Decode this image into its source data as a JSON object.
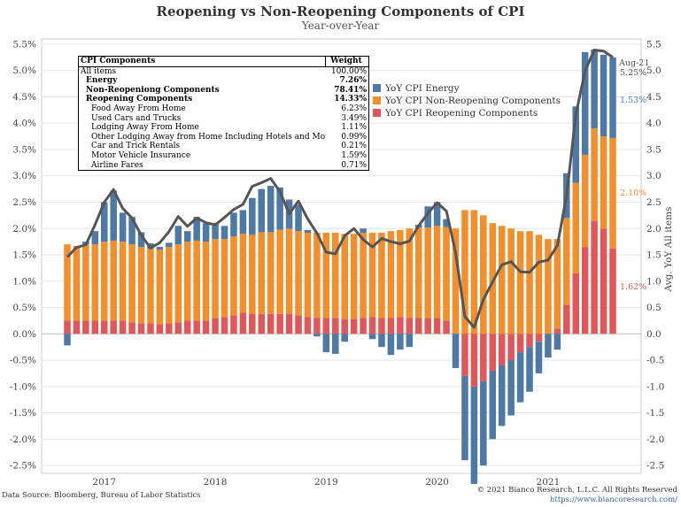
{
  "title": "Reopening vs Non-Reopening Components of CPI",
  "subtitle": "Year-over-Year",
  "footer": {
    "source": "Data Source: Bloomberg, Bureau of Labor Statistics",
    "copyright": "© 2021 Bianco Research, L.L.C. All Rights Reserved",
    "url": "https://www.biancoresearch.com/"
  },
  "colors": {
    "energy": "#4e79a7",
    "non_reopening": "#f28e2b",
    "reopening": "#e15759",
    "line": "#555555"
  },
  "components_table": {
    "header": {
      "name": "CPI Components",
      "weight": "Weight"
    },
    "rows": [
      {
        "name": "All items",
        "weight": "100.00%",
        "bold": false,
        "indent": 0
      },
      {
        "name": "Energy",
        "weight": "7.26%",
        "bold": true,
        "indent": 1
      },
      {
        "name": "Non-Reopeniong Components",
        "weight": "78.41%",
        "bold": true,
        "indent": 1
      },
      {
        "name": "Reopening Components",
        "weight": "14.33%",
        "bold": true,
        "indent": 1
      },
      {
        "name": "Food Away From Home",
        "weight": "6.23%",
        "bold": false,
        "indent": 2
      },
      {
        "name": "Used Cars and Trucks",
        "weight": "3.49%",
        "bold": false,
        "indent": 2
      },
      {
        "name": "Lodging Away From Home",
        "weight": "1.11%",
        "bold": false,
        "indent": 2
      },
      {
        "name": "Other Lodging Away from Home Including Hotels and Motels",
        "weight": "0.99%",
        "bold": false,
        "indent": 2
      },
      {
        "name": "Car and Trick Rentals",
        "weight": "0.21%",
        "bold": false,
        "indent": 2
      },
      {
        "name": "Motor Vehicle Insurance",
        "weight": "1.59%",
        "bold": false,
        "indent": 2
      },
      {
        "name": "Airline Fares",
        "weight": "0.71%",
        "bold": false,
        "indent": 2
      }
    ]
  },
  "chart_data": {
    "type": "bar",
    "stacked": true,
    "title": "Reopening vs Non-Reopening Components of CPI",
    "subtitle": "Year-over-Year",
    "ylabel_right": "Avg. YoY All items",
    "ylim": [
      -2.5,
      5.5
    ],
    "yticks": [
      "-2.5%",
      "-2.0%",
      "-1.5%",
      "-1.0%",
      "-0.5%",
      "0.0%",
      "0.5%",
      "1.0%",
      "1.5%",
      "2.0%",
      "2.5%",
      "3.0%",
      "3.5%",
      "4.0%",
      "4.5%",
      "5.0%",
      "5.5%"
    ],
    "yticks_right": [
      "-2.5",
      "-2.0",
      "-1.5",
      "-1.0",
      "-0.5",
      "0.0",
      "0.5",
      "1.0",
      "1.5",
      "2.0",
      "2.5",
      "3.0",
      "3.5",
      "4.0",
      "4.5",
      "5.0",
      "5.5"
    ],
    "xticks": [
      {
        "label": "2017",
        "index": 4
      },
      {
        "label": "2018",
        "index": 16
      },
      {
        "label": "2019",
        "index": 28
      },
      {
        "label": "2020",
        "index": 40
      },
      {
        "label": "2021",
        "index": 52
      }
    ],
    "months": [
      "Sep-16",
      "Oct-16",
      "Nov-16",
      "Dec-16",
      "Jan-17",
      "Feb-17",
      "Mar-17",
      "Apr-17",
      "May-17",
      "Jun-17",
      "Jul-17",
      "Aug-17",
      "Sep-17",
      "Oct-17",
      "Nov-17",
      "Dec-17",
      "Jan-18",
      "Feb-18",
      "Mar-18",
      "Apr-18",
      "May-18",
      "Jun-18",
      "Jul-18",
      "Aug-18",
      "Sep-18",
      "Oct-18",
      "Nov-18",
      "Dec-18",
      "Jan-19",
      "Feb-19",
      "Mar-19",
      "Apr-19",
      "May-19",
      "Jun-19",
      "Jul-19",
      "Aug-19",
      "Sep-19",
      "Oct-19",
      "Nov-19",
      "Dec-19",
      "Jan-20",
      "Feb-20",
      "Mar-20",
      "Apr-20",
      "May-20",
      "Jun-20",
      "Jul-20",
      "Aug-20",
      "Sep-20",
      "Oct-20",
      "Nov-20",
      "Dec-20",
      "Jan-21",
      "Feb-21",
      "Mar-21",
      "Apr-21",
      "May-21",
      "Jun-21",
      "Jul-21",
      "Aug-21"
    ],
    "series": [
      {
        "name": "YoY CPI Reopening Components",
        "color": "#e15759",
        "values": [
          0.25,
          0.25,
          0.25,
          0.25,
          0.25,
          0.25,
          0.25,
          0.22,
          0.2,
          0.2,
          0.18,
          0.2,
          0.22,
          0.25,
          0.25,
          0.25,
          0.3,
          0.32,
          0.35,
          0.4,
          0.38,
          0.38,
          0.38,
          0.38,
          0.38,
          0.35,
          0.32,
          0.3,
          0.3,
          0.3,
          0.28,
          0.28,
          0.3,
          0.32,
          0.3,
          0.3,
          0.32,
          0.3,
          0.3,
          0.3,
          0.3,
          0.25,
          0.0,
          -0.8,
          -1.0,
          -0.9,
          -0.7,
          -0.6,
          -0.5,
          -0.35,
          -0.25,
          -0.15,
          0.0,
          0.1,
          0.55,
          1.15,
          1.65,
          2.15,
          2.0,
          1.62
        ]
      },
      {
        "name": "YoY CPI Non-Reopening Components",
        "color": "#f28e2b",
        "values": [
          1.45,
          1.42,
          1.45,
          1.45,
          1.5,
          1.52,
          1.5,
          1.48,
          1.45,
          1.42,
          1.42,
          1.45,
          1.48,
          1.5,
          1.52,
          1.5,
          1.5,
          1.48,
          1.5,
          1.5,
          1.5,
          1.55,
          1.55,
          1.6,
          1.62,
          1.6,
          1.6,
          1.62,
          1.62,
          1.62,
          1.62,
          1.62,
          1.62,
          1.6,
          1.62,
          1.65,
          1.65,
          1.7,
          1.72,
          1.72,
          1.75,
          1.78,
          2.0,
          2.35,
          2.35,
          2.25,
          2.1,
          2.05,
          2.0,
          1.95,
          1.95,
          1.88,
          1.8,
          1.7,
          1.65,
          1.72,
          1.75,
          1.75,
          1.75,
          2.1
        ]
      },
      {
        "name": "YoY CPI Energy",
        "color": "#4e79a7",
        "values": [
          -0.22,
          0.0,
          0.05,
          0.25,
          0.75,
          0.95,
          0.55,
          0.52,
          0.28,
          0.1,
          0.05,
          0.08,
          0.35,
          0.2,
          0.45,
          0.35,
          0.3,
          0.25,
          0.45,
          0.45,
          0.7,
          0.82,
          0.88,
          0.8,
          0.55,
          0.5,
          0.05,
          -0.05,
          -0.35,
          -0.38,
          -0.15,
          0.0,
          0.08,
          -0.1,
          -0.25,
          -0.4,
          -0.3,
          -0.25,
          0.05,
          0.4,
          0.45,
          0.15,
          -0.65,
          -1.6,
          -1.85,
          -1.6,
          -1.3,
          -1.15,
          -1.05,
          -0.95,
          -0.85,
          -0.6,
          -0.45,
          -0.3,
          0.85,
          1.45,
          1.95,
          1.5,
          1.55,
          1.53
        ]
      }
    ],
    "line": {
      "name": "Avg. YoY All items",
      "color": "#555555",
      "values": [
        1.46,
        1.64,
        1.69,
        2.07,
        2.5,
        2.74,
        2.38,
        2.2,
        1.87,
        1.63,
        1.73,
        1.94,
        2.23,
        2.04,
        2.2,
        2.11,
        2.07,
        2.21,
        2.36,
        2.46,
        2.8,
        2.87,
        2.95,
        2.7,
        2.28,
        2.52,
        2.18,
        1.91,
        1.55,
        1.52,
        1.86,
        2.0,
        1.79,
        1.65,
        1.81,
        1.75,
        1.71,
        1.76,
        2.05,
        2.29,
        2.49,
        2.33,
        1.54,
        0.33,
        0.12,
        0.65,
        0.99,
        1.31,
        1.37,
        1.18,
        1.17,
        1.36,
        1.4,
        1.68,
        2.62,
        4.16,
        4.99,
        5.39,
        5.37,
        5.25
      ]
    },
    "annotations": [
      {
        "text": "Aug-21",
        "color": "#555555"
      },
      {
        "text": "5.25%",
        "color": "#555555"
      },
      {
        "text": "1.53%",
        "color": "#4e79a7"
      },
      {
        "text": "2.10%",
        "color": "#f28e2b"
      },
      {
        "text": "1.62%",
        "color": "#e15759"
      }
    ],
    "grid": "horizontal",
    "legend_placement": "top-center"
  }
}
